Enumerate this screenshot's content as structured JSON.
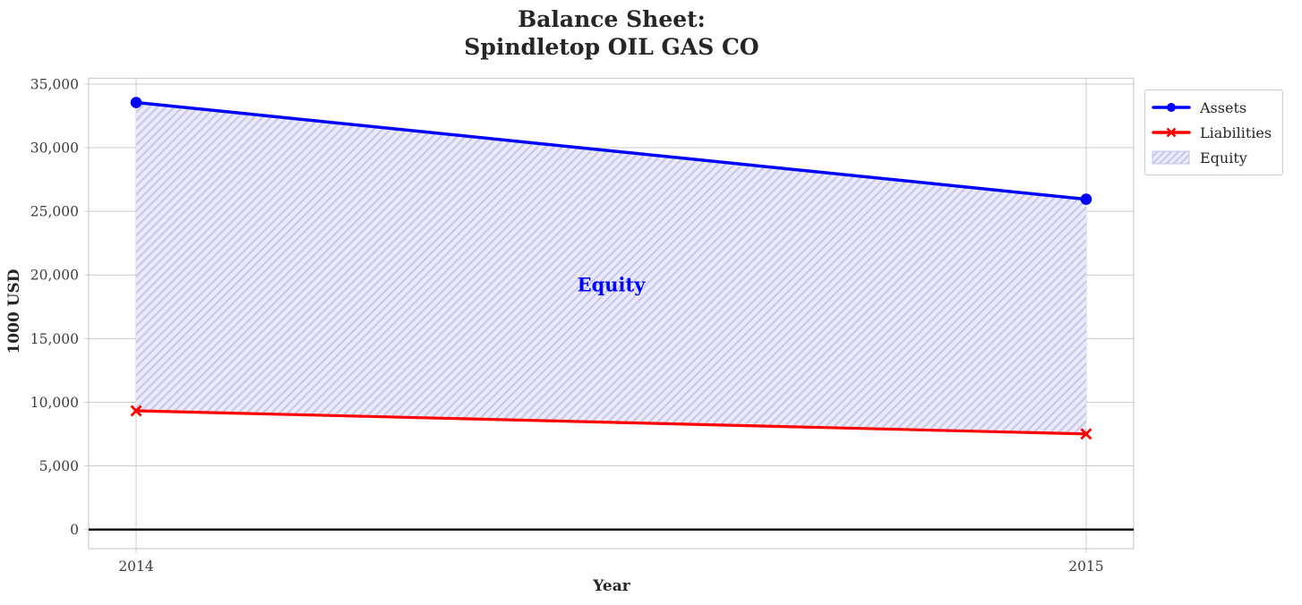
{
  "chart_data": {
    "type": "line",
    "title": "Balance Sheet:\nSpindletop OIL GAS CO",
    "xlabel": "Year",
    "ylabel": "1000 USD",
    "x": [
      2014,
      2015
    ],
    "series": [
      {
        "name": "Assets",
        "values": [
          33550,
          25950
        ],
        "color": "#0000ff",
        "marker": "circle",
        "line_width": 3.5
      },
      {
        "name": "Liabilities",
        "values": [
          9330,
          7510
        ],
        "color": "#ff0000",
        "marker": "x",
        "line_width": 3.2
      }
    ],
    "fill_between": {
      "name": "Equity",
      "upper_series": "Assets",
      "lower_series": "Liabilities",
      "face_color": "#ebebf9",
      "hatch_color": "#c6c6ef",
      "hatch": "/"
    },
    "annotation": {
      "text": "Equity",
      "x": 2014.5,
      "y": 19200,
      "color": "#0000ff"
    },
    "xlim": [
      2013.95,
      2015.05
    ],
    "ylim": [
      -1500,
      35450
    ],
    "x_ticks": [
      {
        "value": 2014,
        "label": "2014"
      },
      {
        "value": 2015,
        "label": "2015"
      }
    ],
    "y_ticks": [
      {
        "value": 0,
        "label": "0"
      },
      {
        "value": 5000,
        "label": "5,000"
      },
      {
        "value": 10000,
        "label": "10,000"
      },
      {
        "value": 15000,
        "label": "15,000"
      },
      {
        "value": 20000,
        "label": "20,000"
      },
      {
        "value": 25000,
        "label": "25,000"
      },
      {
        "value": 30000,
        "label": "30,000"
      },
      {
        "value": 35000,
        "label": "35,000"
      }
    ],
    "grid": true,
    "grid_color": "#cccccc",
    "spine_color": "#cccccc",
    "zero_line_color": "#000000",
    "tick_text_color": "#3d3d3d",
    "legend_position": "outside-upper-right",
    "legend_entries": [
      "Assets",
      "Liabilities",
      "Equity"
    ]
  }
}
